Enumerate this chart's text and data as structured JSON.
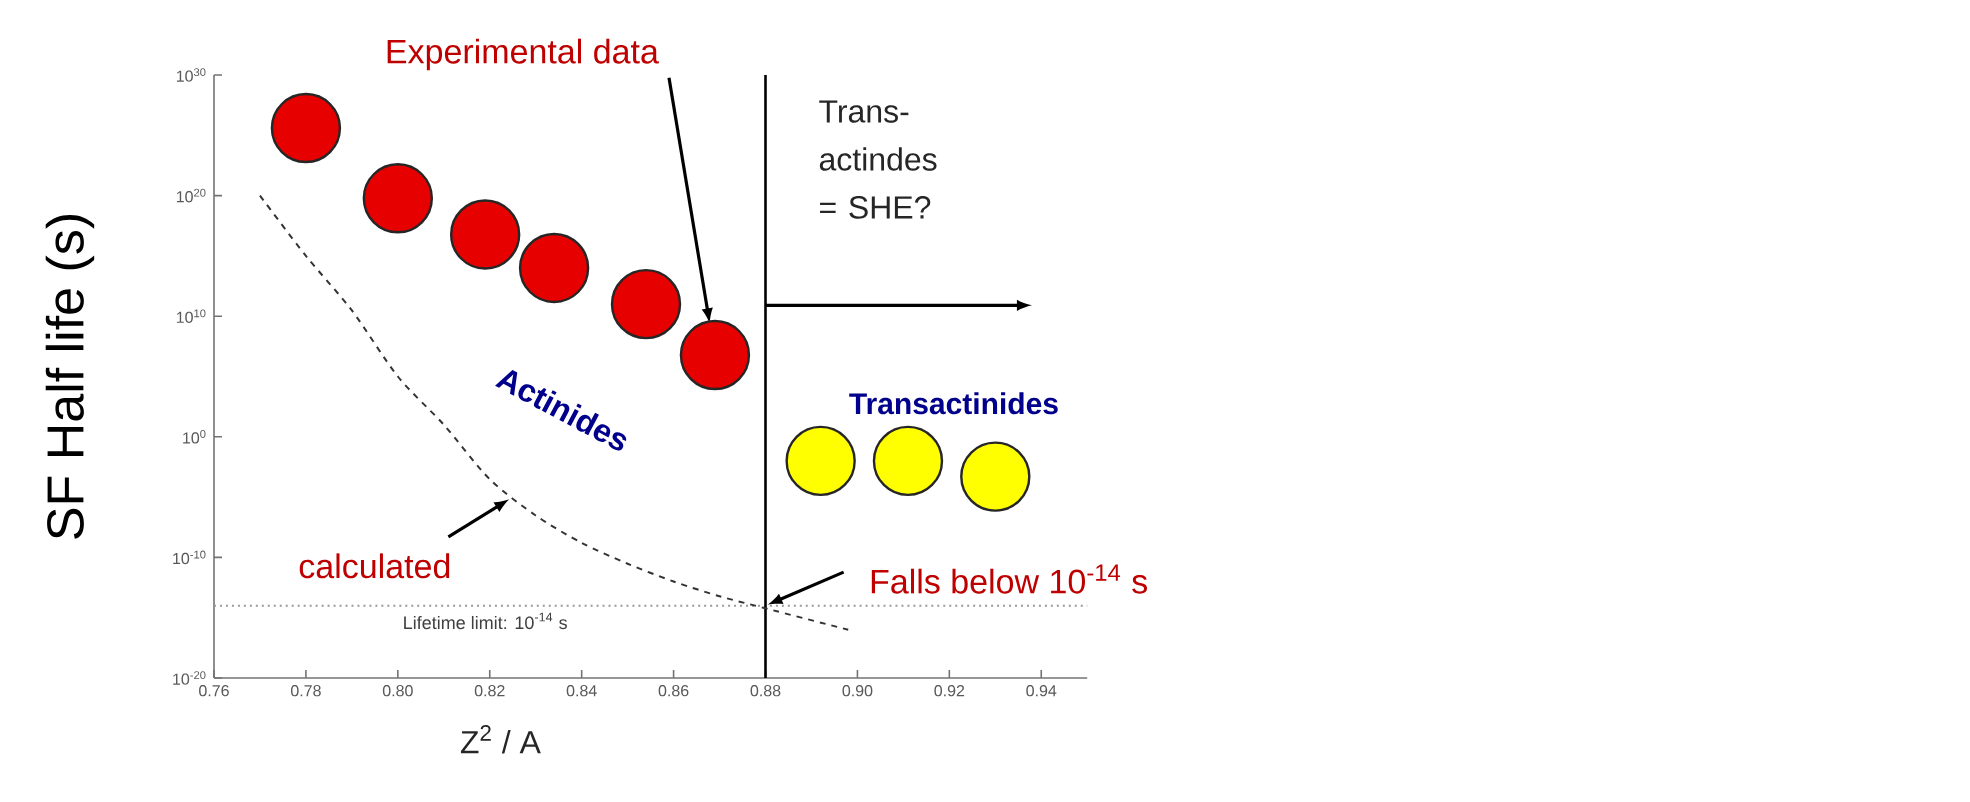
{
  "chart_data": {
    "type": "scatter",
    "xlabel": "Z$^{2}$ / A",
    "ylabel": "SF Half life (s)",
    "log": "y",
    "xlim": [
      0.76,
      0.95
    ],
    "ylim": [
      1e-20,
      1e+30
    ],
    "xticks": [
      {
        "value": 0.76,
        "label": "0.76"
      },
      {
        "value": 0.78,
        "label": "0.78"
      },
      {
        "value": 0.8,
        "label": "0.80"
      },
      {
        "value": 0.82,
        "label": "0.82"
      },
      {
        "value": 0.84,
        "label": "0.84"
      },
      {
        "value": 0.86,
        "label": "0.86"
      },
      {
        "value": 0.88,
        "label": "0.88"
      },
      {
        "value": 0.9,
        "label": "0.90"
      },
      {
        "value": 0.92,
        "label": "0.92"
      },
      {
        "value": 0.94,
        "label": "0.94"
      }
    ],
    "yticks": [
      {
        "value": 1e-20,
        "label": "10$^{-20}$"
      },
      {
        "value": 1e-10,
        "label": "10$^{-10}$"
      },
      {
        "value": 1,
        "label": "10$^{0}$"
      },
      {
        "value": 10000000000.0,
        "label": "10$^{10}$"
      },
      {
        "value": 1e+20,
        "label": "10$^{20}$"
      },
      {
        "value": 1e+30,
        "label": "10$^{30}$"
      }
    ],
    "series": [
      {
        "name": "Experimental data",
        "marker": "circle",
        "color": "#e60000",
        "x": [
          0.78,
          0.8,
          0.819,
          0.834,
          0.854,
          0.869
        ],
        "values": [
          4e+25,
          6e+19,
          6e+16,
          100000000000000.0,
          100000000000.0,
          6000000.0
        ]
      },
      {
        "name": "Transactinides",
        "marker": "circle",
        "color": "#ffff00",
        "x": [
          0.892,
          0.911,
          0.93
        ],
        "values": [
          0.01,
          0.01,
          0.0005
        ]
      },
      {
        "type": "line",
        "marker": "none",
        "line_style": "dashed",
        "color": "#333333",
        "x": [
          0.77,
          0.78,
          0.79,
          0.8,
          0.81,
          0.82,
          0.83,
          0.84,
          0.85,
          0.86,
          0.87,
          0.88,
          0.898
        ],
        "values": [
          1e+20,
          1000000000000000.0,
          30000000000.0,
          100000.0,
          10,
          0.0003,
          3e-07,
          1.6e-09,
          3e-11,
          1e-12,
          6e-14,
          6e-15,
          1e-16
        ]
      }
    ],
    "ref_lines": [
      {
        "axis": "y",
        "value": 1e-14,
        "line_style": "dotted",
        "color": "#999999"
      },
      {
        "axis": "x",
        "value": 0.88,
        "line_style": "solid",
        "color": "#000000"
      }
    ],
    "annotations": [
      "Actinides",
      "Trans-actindes = SHE?",
      {
        "text": "Falls below 10$^{-14}$ s",
        "x": 0.88,
        "y": 1e-14
      },
      {
        "text": "calculated",
        "x": 0.825,
        "y": 1e-05
      },
      "Lifetime limit: 10$^{-14}$ s"
    ]
  }
}
